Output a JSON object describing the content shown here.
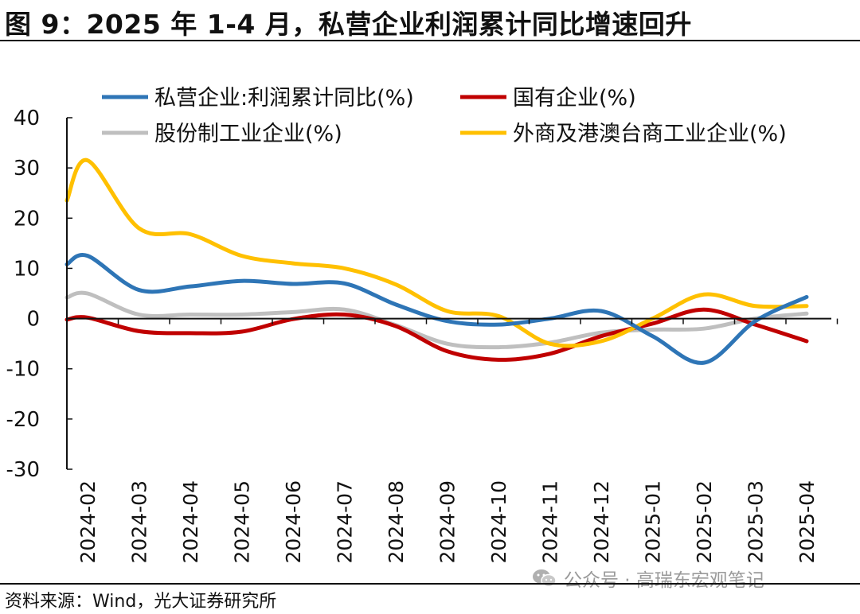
{
  "figure_title": "图 9：2025 年 1-4 月，私营企业利润累计同比增速回升",
  "source": "资料来源：Wind，光大证券研究所",
  "watermark": "公众号 · 高瑞东宏观笔记",
  "chart_data": {
    "type": "line",
    "title": "",
    "xlabel": "",
    "ylabel": "",
    "ylim": [
      -30,
      40
    ],
    "yticks": [
      40,
      30,
      20,
      10,
      0,
      -10,
      -20,
      -30
    ],
    "grid": false,
    "legend_position": "top",
    "x": [
      "2024-02",
      "2024-03",
      "2024-04",
      "2024-05",
      "2024-06",
      "2024-07",
      "2024-08",
      "2024-09",
      "2024-10",
      "2024-11",
      "2024-12",
      "2025-01",
      "2025-02",
      "2025-03",
      "2025-04"
    ],
    "series": [
      {
        "name": "私营企业:利润累计同比(%)",
        "color": "#2e75b6",
        "values": [
          12.5,
          5.7,
          6.4,
          7.5,
          6.9,
          7.0,
          2.8,
          -0.5,
          -1.2,
          0.0,
          1.5,
          -3.5,
          -8.8,
          -0.5,
          4.3
        ]
      },
      {
        "name": "国有企业(%)",
        "color": "#c00000",
        "values": [
          0.2,
          -2.5,
          -2.9,
          -2.6,
          -0.1,
          0.8,
          -1.5,
          -6.5,
          -8.2,
          -7.0,
          -3.5,
          -1.0,
          1.8,
          -1.2,
          -4.5
        ]
      },
      {
        "name": "股份制工业企业(%)",
        "color": "#bfbfbf",
        "values": [
          5.0,
          0.8,
          0.8,
          0.8,
          1.3,
          1.8,
          -1.3,
          -5.0,
          -5.7,
          -4.8,
          -2.8,
          -2.2,
          -2.0,
          0.0,
          1.0
        ]
      },
      {
        "name": "外商及港澳台商工业企业(%)",
        "color": "#ffc000",
        "values": [
          31.5,
          18.0,
          16.8,
          12.5,
          11.0,
          10.0,
          6.8,
          1.5,
          0.5,
          -5.0,
          -4.5,
          0.0,
          4.8,
          2.5,
          2.5
        ]
      }
    ],
    "start_values": [
      10.8,
      -0.2,
      4.2,
      23.5
    ]
  }
}
